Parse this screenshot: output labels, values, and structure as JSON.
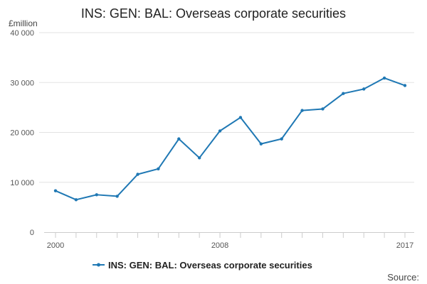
{
  "chart_data": {
    "type": "line",
    "title": "INS: GEN: BAL: Overseas corporate securities",
    "ylabel": "£million",
    "xlabel": "",
    "ylim": [
      0,
      40000
    ],
    "yticks": [
      0,
      10000,
      20000,
      30000,
      40000
    ],
    "ytick_labels": [
      "0",
      "10 000",
      "20 000",
      "30 000",
      "40 000"
    ],
    "xlim": [
      2000,
      2017
    ],
    "xtick_labels": [
      {
        "x": 2000,
        "label": "2000"
      },
      {
        "x": 2008,
        "label": "2008"
      },
      {
        "x": 2017,
        "label": "2017"
      }
    ],
    "x": [
      2000,
      2001,
      2002,
      2003,
      2004,
      2005,
      2006,
      2007,
      2008,
      2009,
      2010,
      2011,
      2012,
      2013,
      2014,
      2015,
      2016,
      2017
    ],
    "series": [
      {
        "name": "INS: GEN: BAL: Overseas corporate securities",
        "color": "#1f78b4",
        "values": [
          8300,
          6500,
          7500,
          7200,
          11600,
          12700,
          18700,
          14900,
          20300,
          23000,
          17700,
          18700,
          24400,
          24700,
          27800,
          28700,
          30900,
          29400
        ]
      }
    ],
    "grid": true,
    "legend_position": "bottom",
    "source_label": "Source:"
  }
}
